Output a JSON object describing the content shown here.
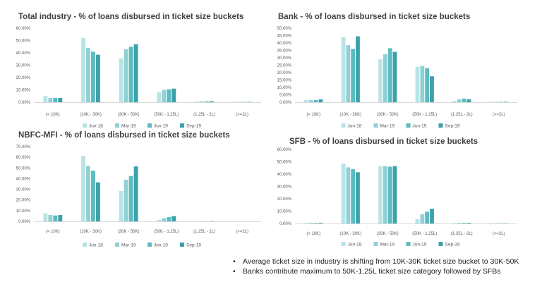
{
  "colors": [
    "#b9e4e6",
    "#8fd1d4",
    "#5bbcc1",
    "#3ca2aa"
  ],
  "chart_data": [
    {
      "type": "bar",
      "title": "Total industry - % of loans disbursed in ticket size buckets",
      "categories": [
        "(< 10K)",
        "(10K - 30K)",
        "(30K - 50K)",
        "(50K - 1.25L)",
        "(1.25L - 2L)",
        "(>=2L)"
      ],
      "series": [
        {
          "name": "Jun-18",
          "values": [
            5,
            52,
            35.5,
            8,
            0.6,
            0.3
          ]
        },
        {
          "name": "Mar-19",
          "values": [
            3.5,
            44,
            43,
            10,
            0.7,
            0.3
          ]
        },
        {
          "name": "Jun-19",
          "values": [
            3.5,
            41,
            45,
            10.5,
            0.7,
            0.3
          ]
        },
        {
          "name": "Sep-19",
          "values": [
            3.5,
            38.5,
            47,
            11,
            0.8,
            0.3
          ]
        }
      ],
      "ylim": [
        0,
        60
      ],
      "yticks": [
        "0.00%",
        "10.00%",
        "20.00%",
        "30.00%",
        "40.00%",
        "50.00%",
        "60.00%"
      ],
      "legend": "bottom"
    },
    {
      "type": "bar",
      "title": "Bank - % of loans disbursed in ticket size buckets",
      "categories": [
        "(< 10K)",
        "(10K - 30K)",
        "(30K - 50K)",
        "(50K - 1.25L)",
        "(1.25L - 2L)",
        "(>=2L)"
      ],
      "series": [
        {
          "name": "Jun-18",
          "values": [
            1.5,
            44,
            29,
            24,
            1,
            0.3
          ]
        },
        {
          "name": "Mar-19",
          "values": [
            1.5,
            38.5,
            32.5,
            24.5,
            2,
            0.3
          ]
        },
        {
          "name": "Jun-19",
          "values": [
            1.5,
            36,
            36.5,
            23,
            2.5,
            0.3
          ]
        },
        {
          "name": "Sep-19",
          "values": [
            2,
            44.5,
            34,
            17.5,
            2,
            0.3
          ]
        }
      ],
      "ylim": [
        0,
        50
      ],
      "yticks": [
        "0.00%",
        "5.00%",
        "10.00%",
        "15.00%",
        "20.00%",
        "25.00%",
        "30.00%",
        "35.00%",
        "40.00%",
        "45.00%",
        "50.00%"
      ],
      "legend": "bottom"
    },
    {
      "type": "bar",
      "title": "NBFC-MFI - % of loans disbursed in ticket size buckets",
      "categories": [
        "(< 10K)",
        "(10K - 30K)",
        "(30K - 50K)",
        "(50K - 1.25L)",
        "(1.25L - 2L)",
        "(>=2L)"
      ],
      "series": [
        {
          "name": "Jun-18",
          "values": [
            7.5,
            61.5,
            28.5,
            1.5,
            0.2,
            0
          ]
        },
        {
          "name": "Mar-19",
          "values": [
            6,
            52,
            39,
            3,
            0.2,
            0
          ]
        },
        {
          "name": "Jun-19",
          "values": [
            5.5,
            47.5,
            42.5,
            4,
            0.2,
            0
          ]
        },
        {
          "name": "Sep-19",
          "values": [
            6,
            36.5,
            51.5,
            5,
            0.3,
            0
          ]
        }
      ],
      "ylim": [
        0,
        70
      ],
      "yticks": [
        "0.00%",
        "10.00%",
        "20.00%",
        "30.00%",
        "40.00%",
        "50.00%",
        "60.00%",
        "70.00%"
      ],
      "legend": "bottom"
    },
    {
      "type": "bar",
      "title": "SFB - % of loans disbursed in ticket size buckets",
      "categories": [
        "(< 10K)",
        "(10K - 30K)",
        "(30K - 50K)",
        "(50K - 1.25L)",
        "(1.25L - 2L)",
        "(>=2L)"
      ],
      "series": [
        {
          "name": "Jun-18",
          "values": [
            0.5,
            48.5,
            46.5,
            3.5,
            0.3,
            0.2
          ]
        },
        {
          "name": "Mar-19",
          "values": [
            0.5,
            45.5,
            46.5,
            7.5,
            0.5,
            0.2
          ]
        },
        {
          "name": "Jun-19",
          "values": [
            0.5,
            44,
            46,
            9.5,
            0.5,
            0.2
          ]
        },
        {
          "name": "Sep-19",
          "values": [
            0.5,
            41.5,
            46.5,
            12,
            0.5,
            0.2
          ]
        }
      ],
      "ylim": [
        0,
        60
      ],
      "yticks": [
        "0.00%",
        "10.00%",
        "20.00%",
        "30.00%",
        "40.00%",
        "50.00%",
        "60.00%"
      ],
      "legend": "bottom"
    }
  ],
  "notes": [
    "Average ticket size in industry is shifting from 10K-30K ticket size bucket to 30K-50K",
    "Banks contribute maximum to 50K-1.25L ticket size category followed by SFBs"
  ]
}
